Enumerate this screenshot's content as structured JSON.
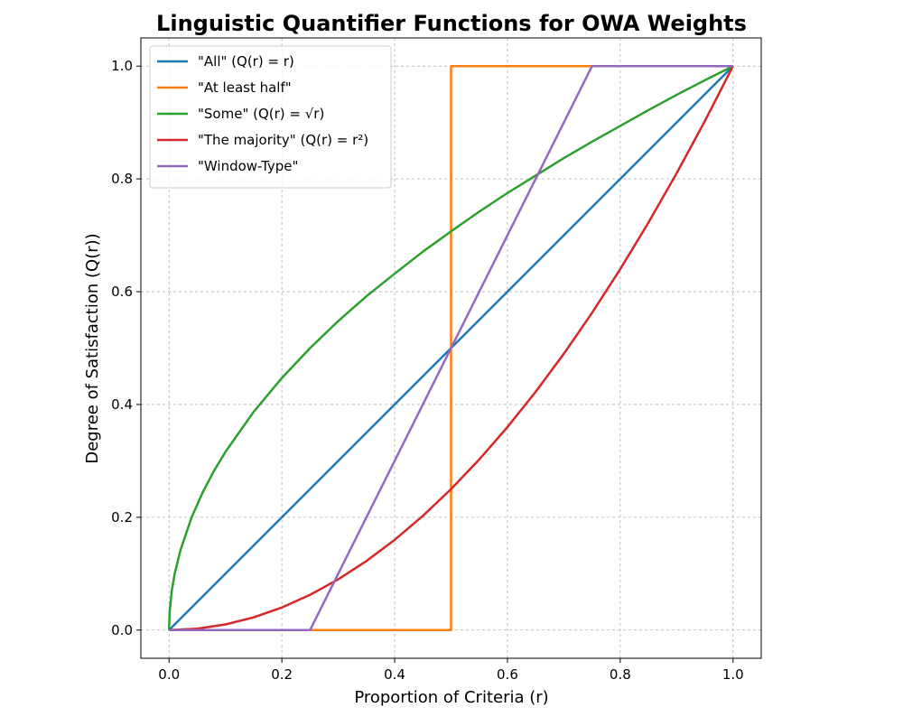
{
  "chart_data": {
    "type": "line",
    "title": "Linguistic Quantifier Functions for OWA Weights",
    "xlabel": "Proportion of Criteria (r)",
    "ylabel": "Degree of Satisfaction (Q(r))",
    "xlim": [
      -0.05,
      1.05
    ],
    "ylim": [
      -0.05,
      1.05
    ],
    "x_ticks": [
      "0.0",
      "0.2",
      "0.4",
      "0.6",
      "0.8",
      "1.0"
    ],
    "y_ticks": [
      "0.0",
      "0.2",
      "0.4",
      "0.6",
      "0.8",
      "1.0"
    ],
    "grid": true,
    "legend_position": "top-left",
    "series": [
      {
        "name": "\"All\" (Q(r) = r)",
        "color": "#1f77b4",
        "x": [
          0,
          1
        ],
        "y": [
          0,
          1
        ]
      },
      {
        "name": "\"At least half\"",
        "color": "#ff7f0e",
        "x": [
          0,
          0.5,
          0.5,
          1
        ],
        "y": [
          0,
          0,
          1,
          1
        ]
      },
      {
        "name": "\"Some\" (Q(r) = √r)",
        "color": "#2ca02c",
        "x": [
          0,
          0.001,
          0.005,
          0.01,
          0.02,
          0.04,
          0.06,
          0.08,
          0.1,
          0.15,
          0.2,
          0.25,
          0.3,
          0.35,
          0.4,
          0.45,
          0.5,
          0.55,
          0.6,
          0.65,
          0.7,
          0.75,
          0.8,
          0.85,
          0.9,
          0.95,
          1
        ],
        "y": [
          0,
          0.032,
          0.071,
          0.1,
          0.141,
          0.2,
          0.245,
          0.283,
          0.316,
          0.387,
          0.447,
          0.5,
          0.548,
          0.592,
          0.632,
          0.671,
          0.707,
          0.742,
          0.775,
          0.806,
          0.837,
          0.866,
          0.894,
          0.922,
          0.949,
          0.975,
          1
        ]
      },
      {
        "name": "\"The majority\" (Q(r) = r²)",
        "color": "#d62728",
        "x": [
          0,
          0.05,
          0.1,
          0.15,
          0.2,
          0.25,
          0.3,
          0.35,
          0.4,
          0.45,
          0.5,
          0.55,
          0.6,
          0.65,
          0.7,
          0.75,
          0.8,
          0.85,
          0.9,
          0.95,
          1
        ],
        "y": [
          0,
          0.0025,
          0.01,
          0.0225,
          0.04,
          0.0625,
          0.09,
          0.1225,
          0.16,
          0.2025,
          0.25,
          0.3025,
          0.36,
          0.4225,
          0.49,
          0.5625,
          0.64,
          0.7225,
          0.81,
          0.9025,
          1
        ]
      },
      {
        "name": "\"Window-Type\"",
        "color": "#9467bd",
        "x": [
          0,
          0.25,
          0.75,
          1
        ],
        "y": [
          0,
          0,
          1,
          1
        ]
      }
    ]
  }
}
